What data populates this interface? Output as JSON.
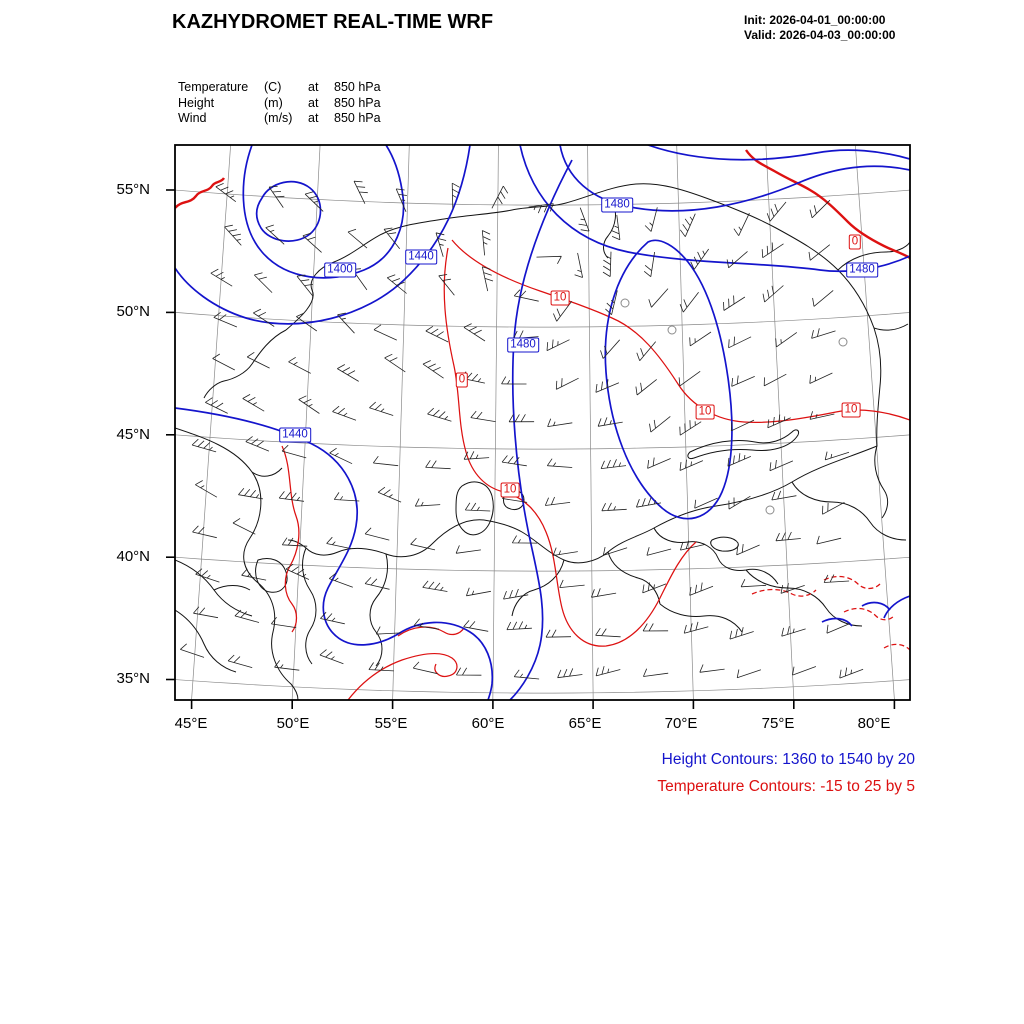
{
  "header": {
    "title": "KAZHYDROMET REAL-TIME WRF",
    "init": "Init: 2026-04-01_00:00:00",
    "valid": "Valid: 2026-04-03_00:00:00"
  },
  "legend": {
    "rows": [
      {
        "field": "Temperature",
        "unit": "(C)",
        "at": "at",
        "level": "850 hPa"
      },
      {
        "field": "Height",
        "unit": "(m)",
        "at": "at",
        "level": "850 hPa"
      },
      {
        "field": "Wind",
        "unit": "(m/s)",
        "at": "at",
        "level": "850 hPa"
      }
    ]
  },
  "axes": {
    "lat_ticks": [
      "55°N",
      "50°N",
      "45°N",
      "40°N",
      "35°N"
    ],
    "lon_ticks": [
      "45°E",
      "50°E",
      "55°E",
      "60°E",
      "65°E",
      "70°E",
      "75°E",
      "80°E"
    ]
  },
  "map": {
    "height_labels": [
      "1400",
      "1440",
      "1480",
      "1480",
      "1480",
      "1440"
    ],
    "temp_labels": [
      "10",
      "0",
      "10",
      "10",
      "10",
      "0"
    ]
  },
  "footer": {
    "height_line": "Height Contours: 1360 to 1540 by 20",
    "temp_line": "Temperature Contours: -15 to 25 by 5"
  },
  "colors": {
    "height_contours": "#1414cc",
    "temperature_contours": "#dd1111"
  },
  "chart_data": {
    "type": "contour-map",
    "title": "KAZHYDROMET REAL-TIME WRF",
    "model_init": "2026-04-01_00:00:00",
    "model_valid": "2026-04-03_00:00:00",
    "region": {
      "lon_range": [
        45,
        80
      ],
      "lat_range": [
        35,
        55
      ],
      "lon_step": 5,
      "lat_step": 5
    },
    "fields": [
      {
        "name": "Height",
        "units": "m",
        "level_hPa": 850,
        "style": "contour",
        "min": 1360,
        "max": 1540,
        "interval": 20,
        "color": "#1414cc",
        "visible_labels": [
          1400,
          1440,
          1480
        ]
      },
      {
        "name": "Temperature",
        "units": "C",
        "level_hPa": 850,
        "style": "contour",
        "min": -15,
        "max": 25,
        "interval": 5,
        "color": "#dd1111",
        "visible_labels": [
          0,
          10
        ],
        "negative_style": "dashed"
      },
      {
        "name": "Wind",
        "units": "m/s",
        "level_hPa": 850,
        "style": "barbs"
      }
    ]
  }
}
